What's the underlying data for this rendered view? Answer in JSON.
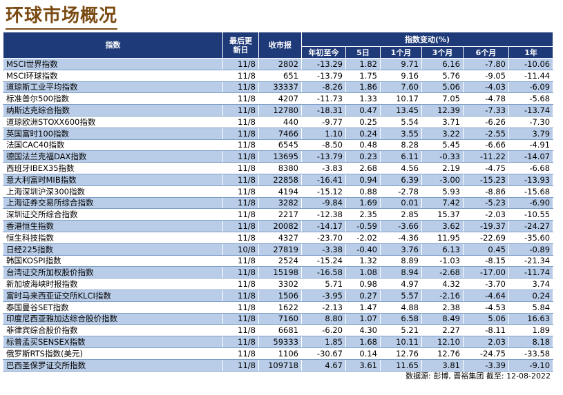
{
  "title": "环球市场概况",
  "header": {
    "index": "指数",
    "last_update": "最后更新日",
    "close": "收市报",
    "change_group": "指数变动(%)",
    "periods": [
      "年初至今",
      "5日",
      "1个月",
      "3个月",
      "6个月",
      "1年"
    ]
  },
  "rows": [
    {
      "name": "MSCI世界指数",
      "date": "11/8",
      "close": "2802",
      "ytd": "-13.29",
      "d5": "1.82",
      "m1": "9.71",
      "m3": "6.16",
      "m6": "-7.80",
      "y1": "-10.06"
    },
    {
      "name": "MSCI环球指数",
      "date": "11/8",
      "close": "651",
      "ytd": "-13.79",
      "d5": "1.75",
      "m1": "9.16",
      "m3": "5.76",
      "m6": "-9.05",
      "y1": "-11.44"
    },
    {
      "name": "道琼斯工业平均指数",
      "date": "11/8",
      "close": "33337",
      "ytd": "-8.26",
      "d5": "1.86",
      "m1": "7.60",
      "m3": "5.06",
      "m6": "-4.03",
      "y1": "-6.09"
    },
    {
      "name": "标准普尔500指数",
      "date": "11/8",
      "close": "4207",
      "ytd": "-11.73",
      "d5": "1.33",
      "m1": "10.17",
      "m3": "7.05",
      "m6": "-4.78",
      "y1": "-5.68"
    },
    {
      "name": "纳斯达克综合指数",
      "date": "11/8",
      "close": "12780",
      "ytd": "-18.31",
      "d5": "0.47",
      "m1": "13.45",
      "m3": "12.39",
      "m6": "-7.33",
      "y1": "-13.74"
    },
    {
      "name": "道琼欧洲STOXX600指数",
      "date": "11/8",
      "close": "440",
      "ytd": "-9.77",
      "d5": "0.25",
      "m1": "5.54",
      "m3": "3.71",
      "m6": "-6.26",
      "y1": "-7.30"
    },
    {
      "name": "英国富时100指数",
      "date": "11/8",
      "close": "7466",
      "ytd": "1.10",
      "d5": "0.24",
      "m1": "3.55",
      "m3": "3.22",
      "m6": "-2.55",
      "y1": "3.79"
    },
    {
      "name": "法国CAC40指数",
      "date": "11/8",
      "close": "6545",
      "ytd": "-8.50",
      "d5": "0.48",
      "m1": "8.28",
      "m3": "5.45",
      "m6": "-6.66",
      "y1": "-4.91"
    },
    {
      "name": "德国法兰克福DAX指数",
      "date": "11/8",
      "close": "13695",
      "ytd": "-13.79",
      "d5": "0.23",
      "m1": "6.11",
      "m3": "-0.33",
      "m6": "-11.22",
      "y1": "-14.07"
    },
    {
      "name": "西班牙IBEX35指数",
      "date": "11/8",
      "close": "8380",
      "ytd": "-3.83",
      "d5": "2.68",
      "m1": "4.56",
      "m3": "2.19",
      "m6": "-4.75",
      "y1": "-6.68"
    },
    {
      "name": "意大利富时MIB指数",
      "date": "11/8",
      "close": "22858",
      "ytd": "-16.41",
      "d5": "0.94",
      "m1": "6.39",
      "m3": "-3.00",
      "m6": "-15.23",
      "y1": "-13.93"
    },
    {
      "name": "上海深圳沪深300指数",
      "date": "11/8",
      "close": "4194",
      "ytd": "-15.12",
      "d5": "0.88",
      "m1": "-2.78",
      "m3": "5.93",
      "m6": "-8.86",
      "y1": "-15.68"
    },
    {
      "name": "上海证券交易所综合指数",
      "date": "11/8",
      "close": "3282",
      "ytd": "-9.84",
      "d5": "1.69",
      "m1": "0.01",
      "m3": "7.42",
      "m6": "-5.23",
      "y1": "-6.90"
    },
    {
      "name": "深圳证交所综合指数",
      "date": "11/8",
      "close": "2217",
      "ytd": "-12.38",
      "d5": "2.35",
      "m1": "2.85",
      "m3": "15.37",
      "m6": "-2.03",
      "y1": "-10.55"
    },
    {
      "name": "香港恒生指数",
      "date": "11/8",
      "close": "20082",
      "ytd": "-14.17",
      "d5": "-0.59",
      "m1": "-3.66",
      "m3": "3.62",
      "m6": "-19.37",
      "y1": "-24.27"
    },
    {
      "name": "恒生科技指数",
      "date": "11/8",
      "close": "4327",
      "ytd": "-23.70",
      "d5": "-2.02",
      "m1": "-4.36",
      "m3": "11.95",
      "m6": "-22.69",
      "y1": "-35.60"
    },
    {
      "name": "日经225指数",
      "date": "10/8",
      "close": "27819",
      "ytd": "-3.38",
      "d5": "-0.40",
      "m1": "3.76",
      "m3": "6.13",
      "m6": "0.45",
      "y1": "-0.89"
    },
    {
      "name": "韩国KOSPI指数",
      "date": "11/8",
      "close": "2524",
      "ytd": "-15.24",
      "d5": "1.32",
      "m1": "8.89",
      "m3": "-1.03",
      "m6": "-8.15",
      "y1": "-21.34"
    },
    {
      "name": "台湾证交所加权股价指数",
      "date": "11/8",
      "close": "15198",
      "ytd": "-16.58",
      "d5": "1.08",
      "m1": "8.94",
      "m3": "-2.68",
      "m6": "-17.00",
      "y1": "-11.74"
    },
    {
      "name": "新加坡海峡时报指数",
      "date": "11/8",
      "close": "3302",
      "ytd": "5.71",
      "d5": "0.98",
      "m1": "4.97",
      "m3": "4.32",
      "m6": "-3.70",
      "y1": "3.74"
    },
    {
      "name": "富时马来西亚证交所KLCI指数",
      "date": "11/8",
      "close": "1506",
      "ytd": "-3.95",
      "d5": "0.27",
      "m1": "5.57",
      "m3": "-2.16",
      "m6": "-4.64",
      "y1": "0.24"
    },
    {
      "name": "泰国曼谷SET指数",
      "date": "11/8",
      "close": "1622",
      "ytd": "-2.13",
      "d5": "1.47",
      "m1": "4.88",
      "m3": "2.38",
      "m6": "-4.53",
      "y1": "5.84"
    },
    {
      "name": "印度尼西亚雅加达综合股价指数",
      "date": "11/8",
      "close": "7160",
      "ytd": "8.80",
      "d5": "1.07",
      "m1": "6.58",
      "m3": "8.49",
      "m6": "5.06",
      "y1": "16.63"
    },
    {
      "name": "菲律宾综合股价指数",
      "date": "11/8",
      "close": "6681",
      "ytd": "-6.20",
      "d5": "4.30",
      "m1": "5.21",
      "m3": "2.27",
      "m6": "-8.11",
      "y1": "1.89"
    },
    {
      "name": "标普孟买SENSEX指数",
      "date": "11/8",
      "close": "59333",
      "ytd": "1.85",
      "d5": "1.68",
      "m1": "10.11",
      "m3": "12.10",
      "m6": "2.03",
      "y1": "8.18"
    },
    {
      "name": "俄罗斯RTS指数(美元)",
      "date": "11/8",
      "close": "1106",
      "ytd": "-30.67",
      "d5": "0.14",
      "m1": "12.76",
      "m3": "12.76",
      "m6": "-24.75",
      "y1": "-33.58"
    },
    {
      "name": "巴西圣保罗证交所指数",
      "date": "11/8",
      "close": "109718",
      "ytd": "4.67",
      "d5": "3.61",
      "m1": "11.65",
      "m3": "3.81",
      "m6": "-3.39",
      "y1": "-9.10"
    }
  ],
  "source": "数据源: 彭博, 晋裕集团 截至: 12-08-2022",
  "colors": {
    "header_bg": "#1f3a78",
    "stripe": "#b9cde8",
    "title": "#7a4a12"
  }
}
